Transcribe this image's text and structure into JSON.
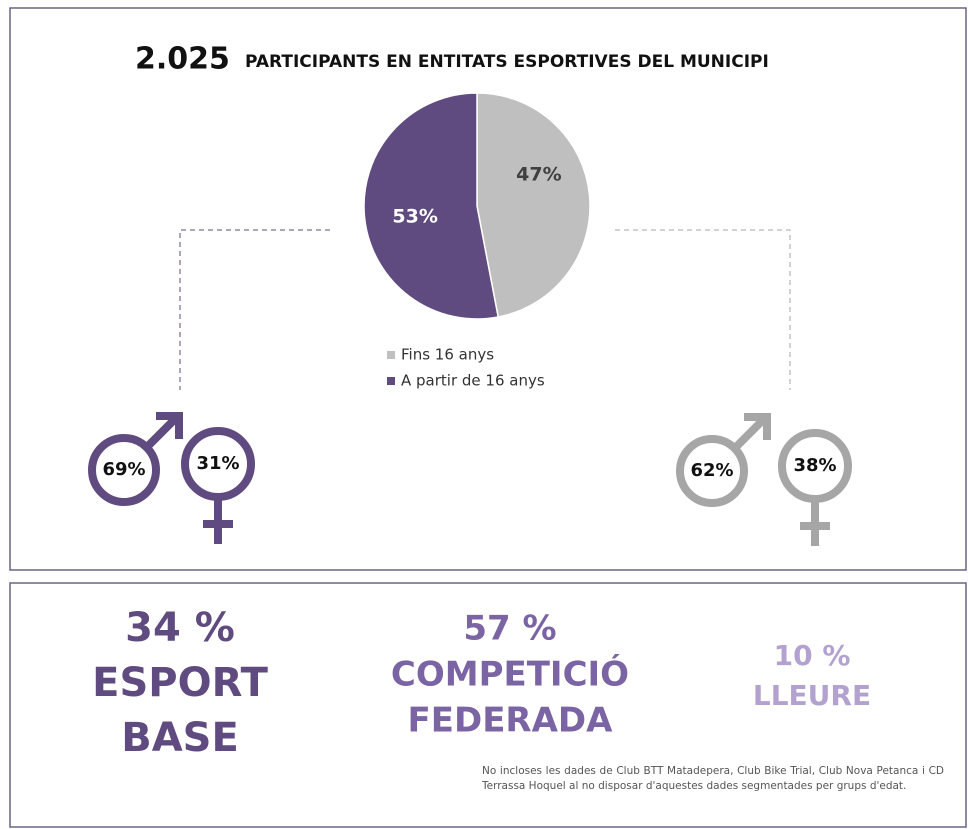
{
  "header": {
    "number": "2.025",
    "title": "PARTICIPANTS EN ENTITATS ESPORTIVES DEL MUNICIPI"
  },
  "chart_data": {
    "type": "pie",
    "categories": [
      "Fins 16 anys",
      "A partir de 16 anys"
    ],
    "values": [
      47,
      53
    ],
    "value_labels": [
      "47%",
      "53%"
    ],
    "colors": [
      "#bfbfbf",
      "#5f4b80"
    ],
    "legend": "bottom"
  },
  "gender": [
    {
      "male": "69%",
      "female": "31%",
      "color": "#5f4b80"
    },
    {
      "male": "62%",
      "female": "38%",
      "color": "#a6a6a6"
    }
  ],
  "stats": [
    {
      "value": "34 %",
      "lines": [
        "ESPORT",
        "BASE"
      ],
      "color": "#5f4b80"
    },
    {
      "value": "57 %",
      "lines": [
        "COMPETICIÓ",
        "FEDERADA"
      ],
      "color": "#7b64a3"
    },
    {
      "value": "10 %",
      "lines": [
        "LLEURE"
      ],
      "color": "#b3a2d0"
    }
  ],
  "note": "No incloses les dades de Club BTT Matadepera, Club Bike Trial, Club Nova Petanca i CD Terrassa Hoquel al no disposar d'aquestes dades segmentades per grups d'edat."
}
